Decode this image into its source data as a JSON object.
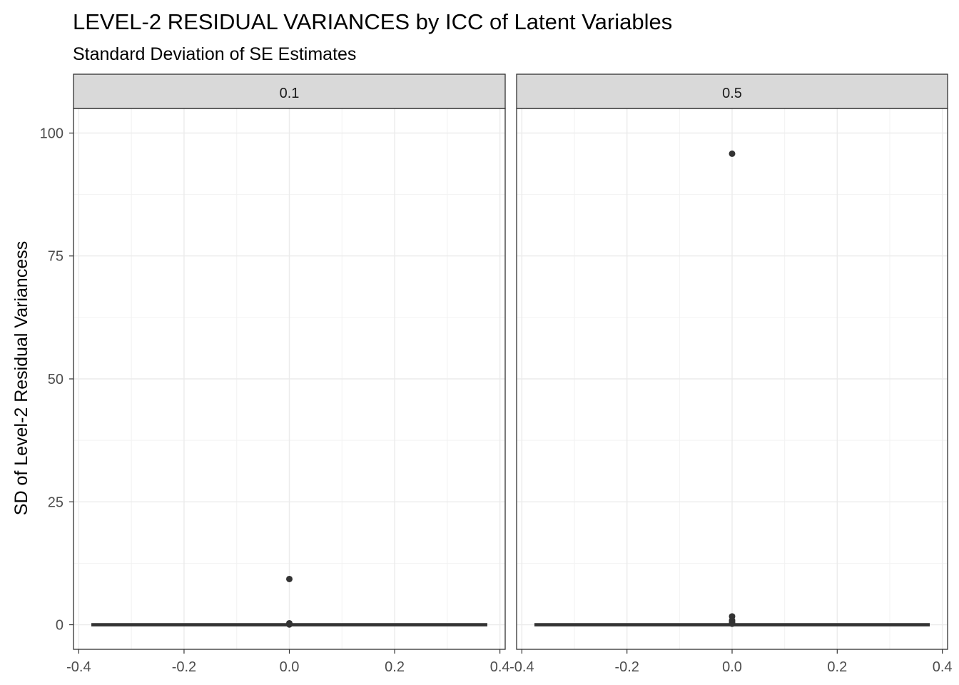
{
  "chart_data": {
    "type": "box",
    "title": "LEVEL-2 RESIDUAL VARIANCES by ICC of Latent Variables",
    "subtitle": "Standard Deviation of SE Estimates",
    "xlabel": "",
    "ylabel": "SD of Level-2 Residual Variancess",
    "xlim": [
      -0.4,
      0.4
    ],
    "ylim": [
      0,
      100
    ],
    "x_ticks": [
      "-0.4",
      "-0.2",
      "0.0",
      "0.2",
      "0.4"
    ],
    "y_ticks": [
      "0",
      "25",
      "50",
      "75",
      "100"
    ],
    "grid": true,
    "legend": "none",
    "colors": {
      "marks": "#333333",
      "strip_fill": "#d9d9d9",
      "grid": "#ebebeb"
    },
    "facets": [
      {
        "label": "0.1",
        "box": {
          "x": 0,
          "width": 0.75,
          "q1": 0,
          "median": 0,
          "q3": 0
        },
        "outliers": [
          9.3,
          0.3,
          0.15,
          0.05
        ]
      },
      {
        "label": "0.5",
        "box": {
          "x": 0,
          "width": 0.75,
          "q1": 0,
          "median": 0,
          "q3": 0
        },
        "outliers": [
          95.8,
          1.7,
          0.9,
          0.5,
          0.2
        ]
      }
    ]
  }
}
